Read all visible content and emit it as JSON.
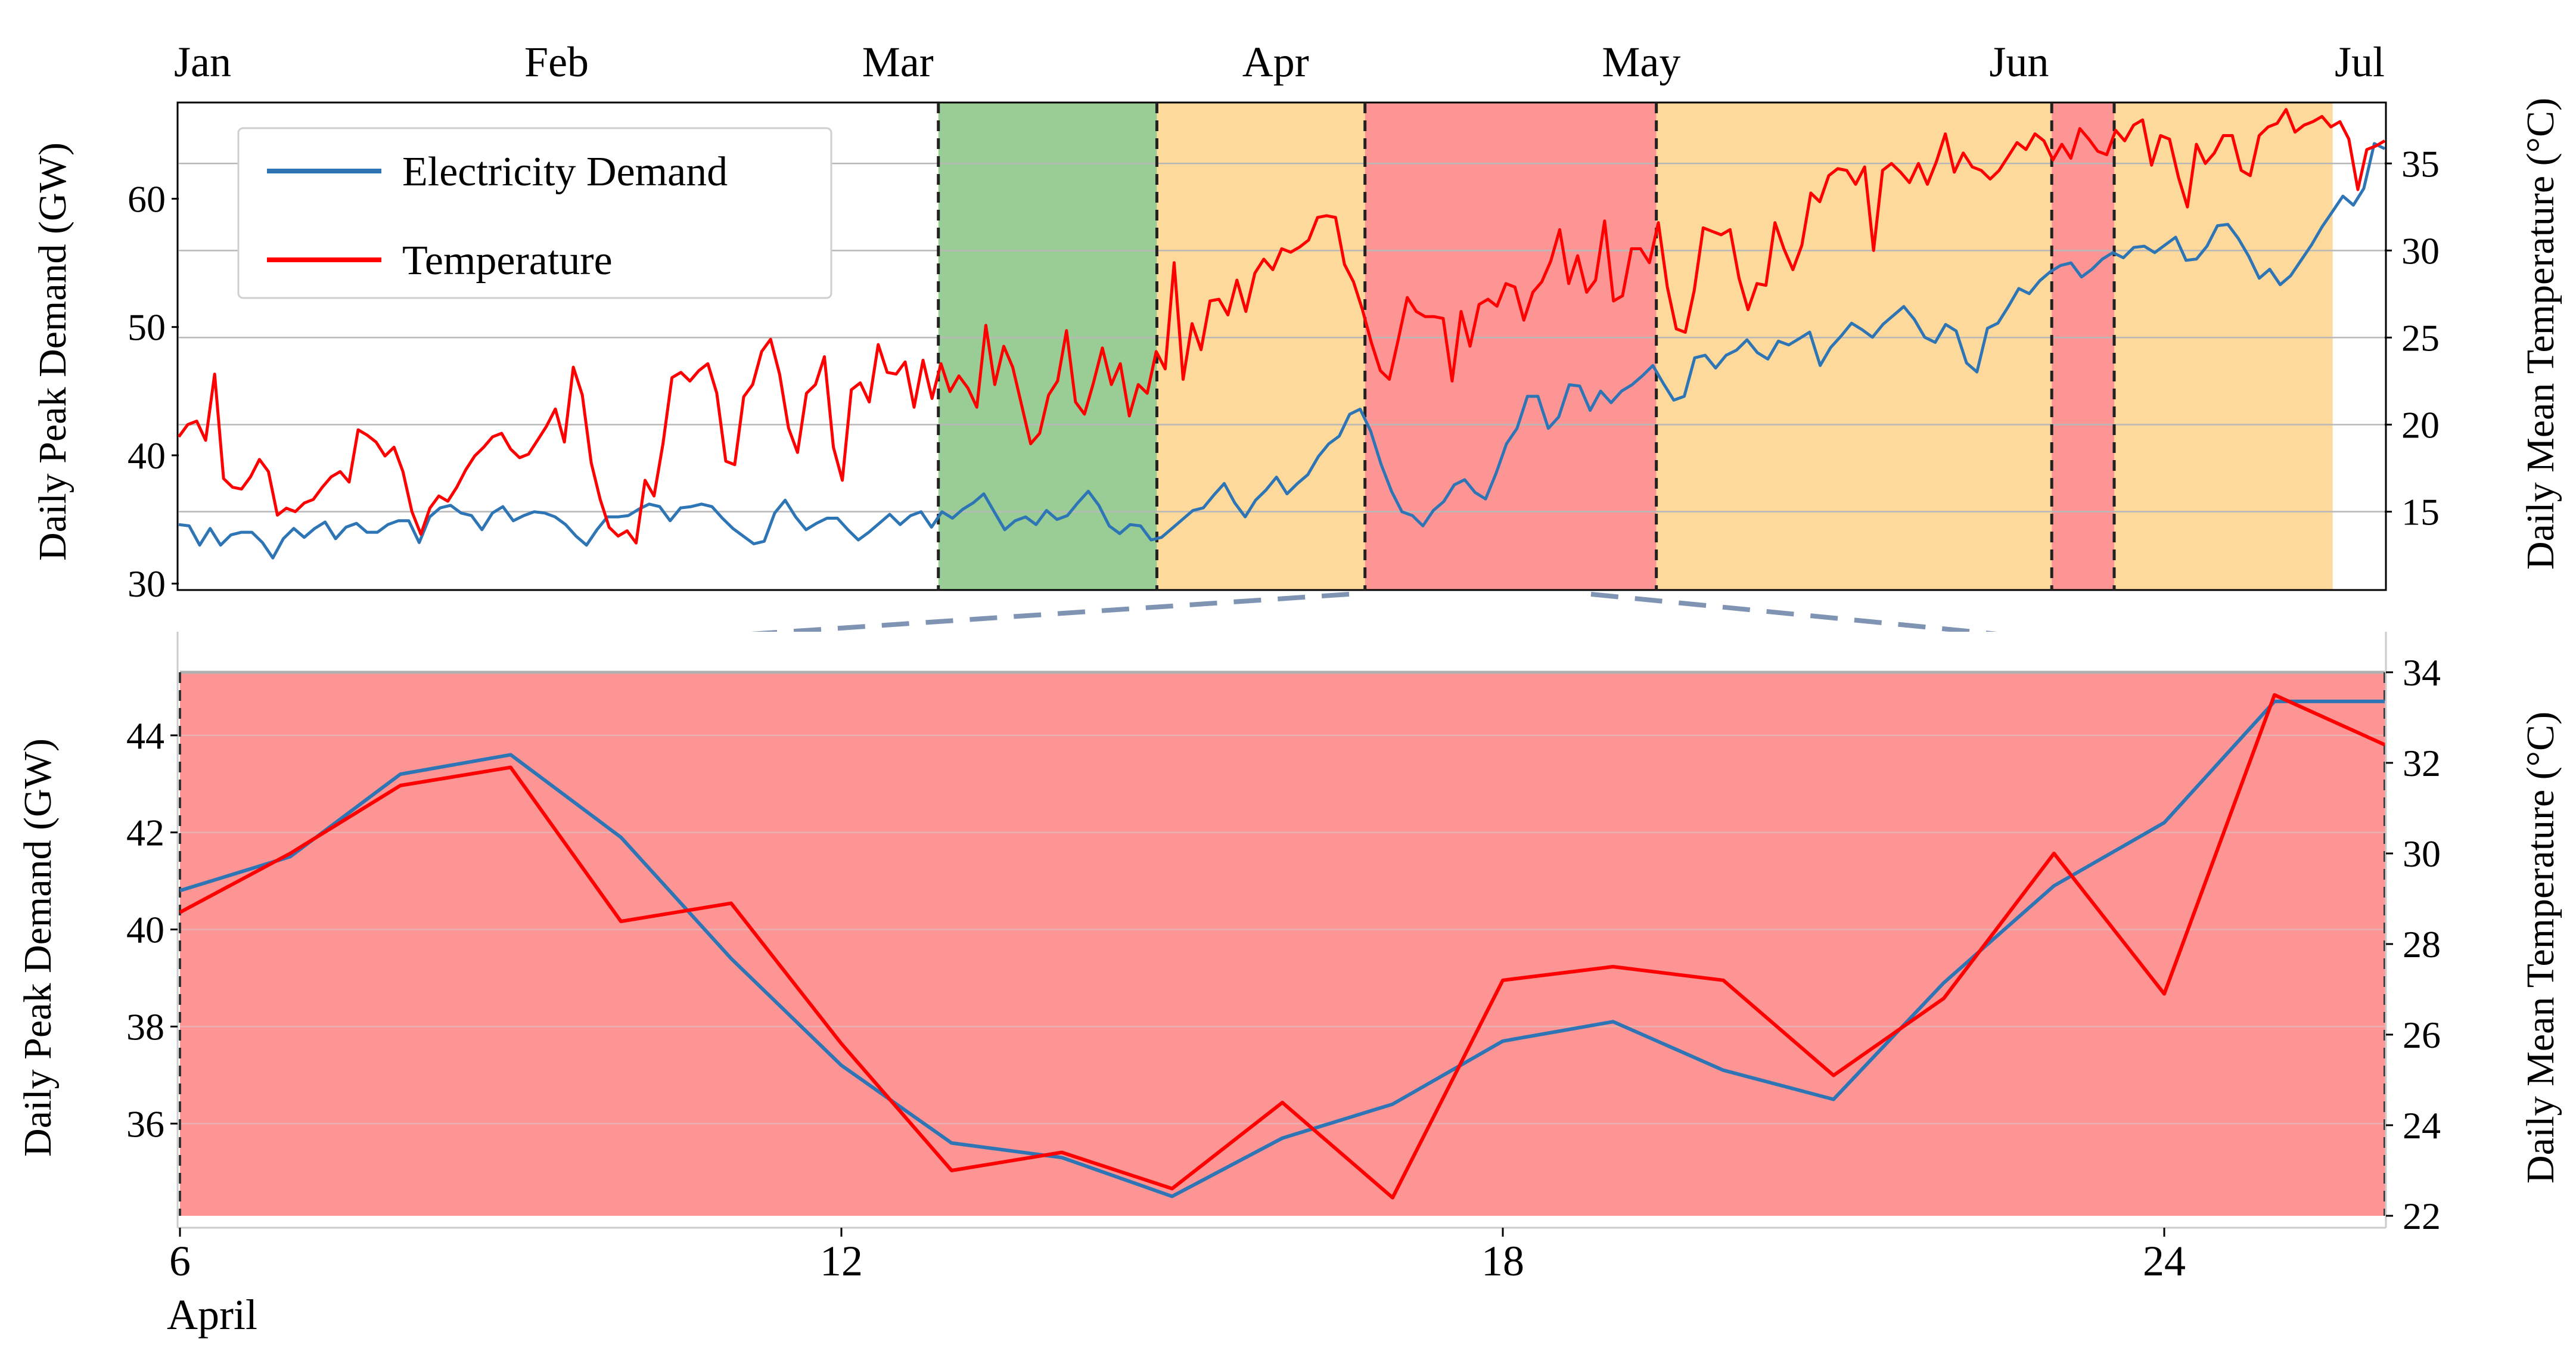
{
  "chart_data": [
    {
      "type": "line",
      "panel": "overview",
      "months": [
        "Jan",
        "Feb",
        "Mar",
        "Apr",
        "May",
        "Jun",
        "Jul"
      ],
      "ylabel_left": "Daily Peak Demand (GW)",
      "ylabel_right": "Daily Mean Temperature (°C)",
      "left_ticks": [
        30,
        40,
        50,
        60
      ],
      "right_ticks": [
        15,
        20,
        25,
        30,
        35
      ],
      "ylim_left": [
        29.5,
        67.5
      ],
      "ylim_right": [
        10.5,
        38.5
      ],
      "legend": [
        "Electricity Demand",
        "Temperature"
      ],
      "regions": [
        {
          "start_day": 73,
          "end_day": 94,
          "color": "#9acd95"
        },
        {
          "start_day": 94,
          "end_day": 114,
          "color": "#fdd99b"
        },
        {
          "start_day": 114,
          "end_day": 142,
          "color": "#fd9595"
        },
        {
          "start_day": 142,
          "end_day": 180,
          "color": "#fdd99b"
        },
        {
          "start_day": 180,
          "end_day": 186,
          "color": "#fd9595"
        },
        {
          "start_day": 186,
          "end_day": 207,
          "color": "#fdd99b"
        }
      ],
      "series": [
        {
          "name": "Electricity Demand",
          "color": "#2e75b6",
          "axis": "left",
          "values": [
            34.6,
            34.5,
            33.0,
            34.3,
            33.0,
            33.8,
            34.0,
            34.0,
            33.2,
            32.0,
            33.5,
            34.3,
            33.6,
            34.3,
            34.8,
            33.5,
            34.4,
            34.7,
            34.0,
            34.0,
            34.6,
            34.9,
            34.9,
            33.2,
            35.2,
            35.9,
            36.1,
            35.5,
            35.3,
            34.2,
            35.5,
            36.0,
            34.9,
            35.3,
            35.6,
            35.5,
            35.2,
            34.6,
            33.7,
            33.0,
            34.2,
            35.2,
            35.2,
            35.3,
            35.8,
            36.2,
            36.0,
            34.9,
            35.9,
            36.0,
            36.2,
            36.0,
            35.1,
            34.3,
            33.7,
            33.1,
            33.3,
            35.5,
            36.5,
            35.2,
            34.2,
            34.7,
            35.1,
            35.1,
            34.2,
            33.4,
            34.0,
            34.7,
            35.4,
            34.6,
            35.3,
            35.6,
            34.4,
            35.6,
            35.1,
            35.8,
            36.3,
            37.0,
            35.6,
            34.2,
            34.9,
            35.2,
            34.6,
            35.7,
            35.0,
            35.3,
            36.3,
            37.2,
            36.1,
            34.5,
            33.9,
            34.6,
            34.5,
            33.4,
            33.6,
            34.3,
            35.0,
            35.7,
            35.9,
            36.9,
            37.8,
            36.3,
            35.2,
            36.5,
            37.3,
            38.3,
            37.0,
            37.8,
            38.5,
            39.9,
            40.9,
            41.5,
            43.2,
            43.6,
            41.9,
            39.3,
            37.2,
            35.6,
            35.3,
            34.5,
            35.7,
            36.4,
            37.7,
            38.1,
            37.1,
            36.6,
            38.6,
            40.9,
            42.1,
            44.6,
            44.6,
            42.1,
            43.0,
            45.5,
            45.4,
            43.5,
            45.0,
            44.1,
            45.0,
            45.5,
            46.2,
            47.0,
            45.6,
            44.3,
            44.6,
            47.6,
            47.8,
            46.8,
            47.8,
            48.2,
            49.0,
            48.0,
            47.5,
            48.9,
            48.6,
            49.1,
            49.6,
            47.0,
            48.4,
            49.3,
            50.3,
            49.8,
            49.2,
            50.2,
            50.9,
            51.6,
            50.6,
            49.2,
            48.8,
            50.2,
            49.7,
            47.2,
            46.5,
            49.9,
            50.3,
            51.6,
            53.0,
            52.6,
            53.6,
            54.3,
            54.8,
            55.0,
            53.9,
            54.5,
            55.3,
            55.8,
            55.4,
            56.2,
            56.3,
            55.8,
            56.4,
            57.0,
            55.2,
            55.3,
            56.3,
            57.9,
            58.0,
            56.9,
            55.5,
            53.8,
            54.5,
            53.3,
            54.0,
            55.2,
            56.4,
            57.8,
            59.0,
            60.2,
            59.5,
            60.8,
            64.3,
            63.9
          ]
        },
        {
          "name": "Temperature",
          "color": "#ff0000",
          "axis": "right",
          "values": [
            19.3,
            20.0,
            20.2,
            19.1,
            22.9,
            16.9,
            16.4,
            16.3,
            17.0,
            18.0,
            17.3,
            14.8,
            15.2,
            15.0,
            15.5,
            15.7,
            16.4,
            17.0,
            17.3,
            16.7,
            19.7,
            19.4,
            19.0,
            18.2,
            18.7,
            17.3,
            15.0,
            13.7,
            15.2,
            15.9,
            15.6,
            16.4,
            17.4,
            18.2,
            18.7,
            19.3,
            19.5,
            18.6,
            18.1,
            18.3,
            19.1,
            19.9,
            20.9,
            19.0,
            23.3,
            21.7,
            17.8,
            15.7,
            14.1,
            13.6,
            13.9,
            13.2,
            16.8,
            15.9,
            18.9,
            22.7,
            23.0,
            22.5,
            23.1,
            23.5,
            21.8,
            17.9,
            17.7,
            21.6,
            22.3,
            24.2,
            24.9,
            22.9,
            19.8,
            18.4,
            21.8,
            22.3,
            23.9,
            18.7,
            16.8,
            22.0,
            22.4,
            21.3,
            24.6,
            23.0,
            22.9,
            23.6,
            21.0,
            23.7,
            21.5,
            23.5,
            21.9,
            22.8,
            22.1,
            21.0,
            25.7,
            22.3,
            24.5,
            23.3,
            21.1,
            18.9,
            19.5,
            21.7,
            22.5,
            25.4,
            21.3,
            20.6,
            22.4,
            24.4,
            22.3,
            23.5,
            20.5,
            22.3,
            21.8,
            24.2,
            23.2,
            29.3,
            22.6,
            25.8,
            24.3,
            27.1,
            27.2,
            26.3,
            28.3,
            26.5,
            28.7,
            29.5,
            28.9,
            30.1,
            29.9,
            30.2,
            30.6,
            31.9,
            32.0,
            31.9,
            29.2,
            28.2,
            26.6,
            24.7,
            23.1,
            22.6,
            24.9,
            27.3,
            26.5,
            26.2,
            26.2,
            26.1,
            22.5,
            26.5,
            24.5,
            26.9,
            27.2,
            26.8,
            28.1,
            27.9,
            26.0,
            27.6,
            28.2,
            29.4,
            31.2,
            28.1,
            29.7,
            27.6,
            28.3,
            31.7,
            27.1,
            27.4,
            30.1,
            30.1,
            29.3,
            31.6,
            27.9,
            25.5,
            25.3,
            27.7,
            31.3,
            31.1,
            30.9,
            31.2,
            28.4,
            26.6,
            28.1,
            28.0,
            31.6,
            30.1,
            28.9,
            30.3,
            33.3,
            32.8,
            34.3,
            34.7,
            34.6,
            33.8,
            34.8,
            30.0,
            34.6,
            35.0,
            34.5,
            33.9,
            35.0,
            33.8,
            35.1,
            36.7,
            34.5,
            35.6,
            34.8,
            34.6,
            34.1,
            34.6,
            35.4,
            36.2,
            35.8,
            36.7,
            36.3,
            35.2,
            36.1,
            35.3,
            37.0,
            36.4,
            35.7,
            35.5,
            36.9,
            36.3,
            37.2,
            37.5,
            34.9,
            36.6,
            36.4,
            34.2,
            32.5,
            36.1,
            35.0,
            35.6,
            36.6,
            36.6,
            34.6,
            34.3,
            36.6,
            37.1,
            37.3,
            38.1,
            36.8,
            37.2,
            37.4,
            37.7,
            37.1,
            37.4,
            36.4,
            33.5,
            35.8,
            36.0,
            36.3
          ]
        }
      ]
    },
    {
      "type": "line",
      "panel": "zoom",
      "xlabel": "April",
      "x": [
        6,
        7,
        8,
        9,
        10,
        11,
        12,
        13,
        14,
        15,
        16,
        17,
        18,
        19,
        20,
        21,
        22,
        23,
        24,
        25,
        26
      ],
      "x_ticks": [
        6,
        12,
        18,
        24
      ],
      "ylabel_left": "Daily Peak Demand (GW)",
      "ylabel_right": "Daily Mean Temperature (°C)",
      "left_ticks": [
        36,
        38,
        40,
        42,
        44
      ],
      "right_ticks": [
        22,
        24,
        26,
        28,
        30,
        32,
        34
      ],
      "ylim_left": [
        34.1,
        45.3
      ],
      "ylim_right": [
        22.0,
        34.0
      ],
      "background": "#fd9595",
      "series": [
        {
          "name": "Electricity Demand",
          "color": "#2e75b6",
          "axis": "left",
          "values": [
            40.8,
            41.5,
            43.2,
            43.6,
            41.9,
            39.4,
            37.2,
            35.6,
            35.3,
            34.5,
            35.7,
            36.4,
            37.7,
            38.1,
            37.1,
            36.5,
            38.9,
            40.9,
            42.2,
            44.7,
            44.7
          ]
        },
        {
          "name": "Temperature",
          "color": "#ff0000",
          "axis": "right",
          "values": [
            28.7,
            30.0,
            31.5,
            31.9,
            28.5,
            28.9,
            25.8,
            23.0,
            23.4,
            22.6,
            24.5,
            22.4,
            27.2,
            27.5,
            27.2,
            25.1,
            26.8,
            30.0,
            26.9,
            33.5,
            32.4
          ]
        }
      ]
    }
  ]
}
